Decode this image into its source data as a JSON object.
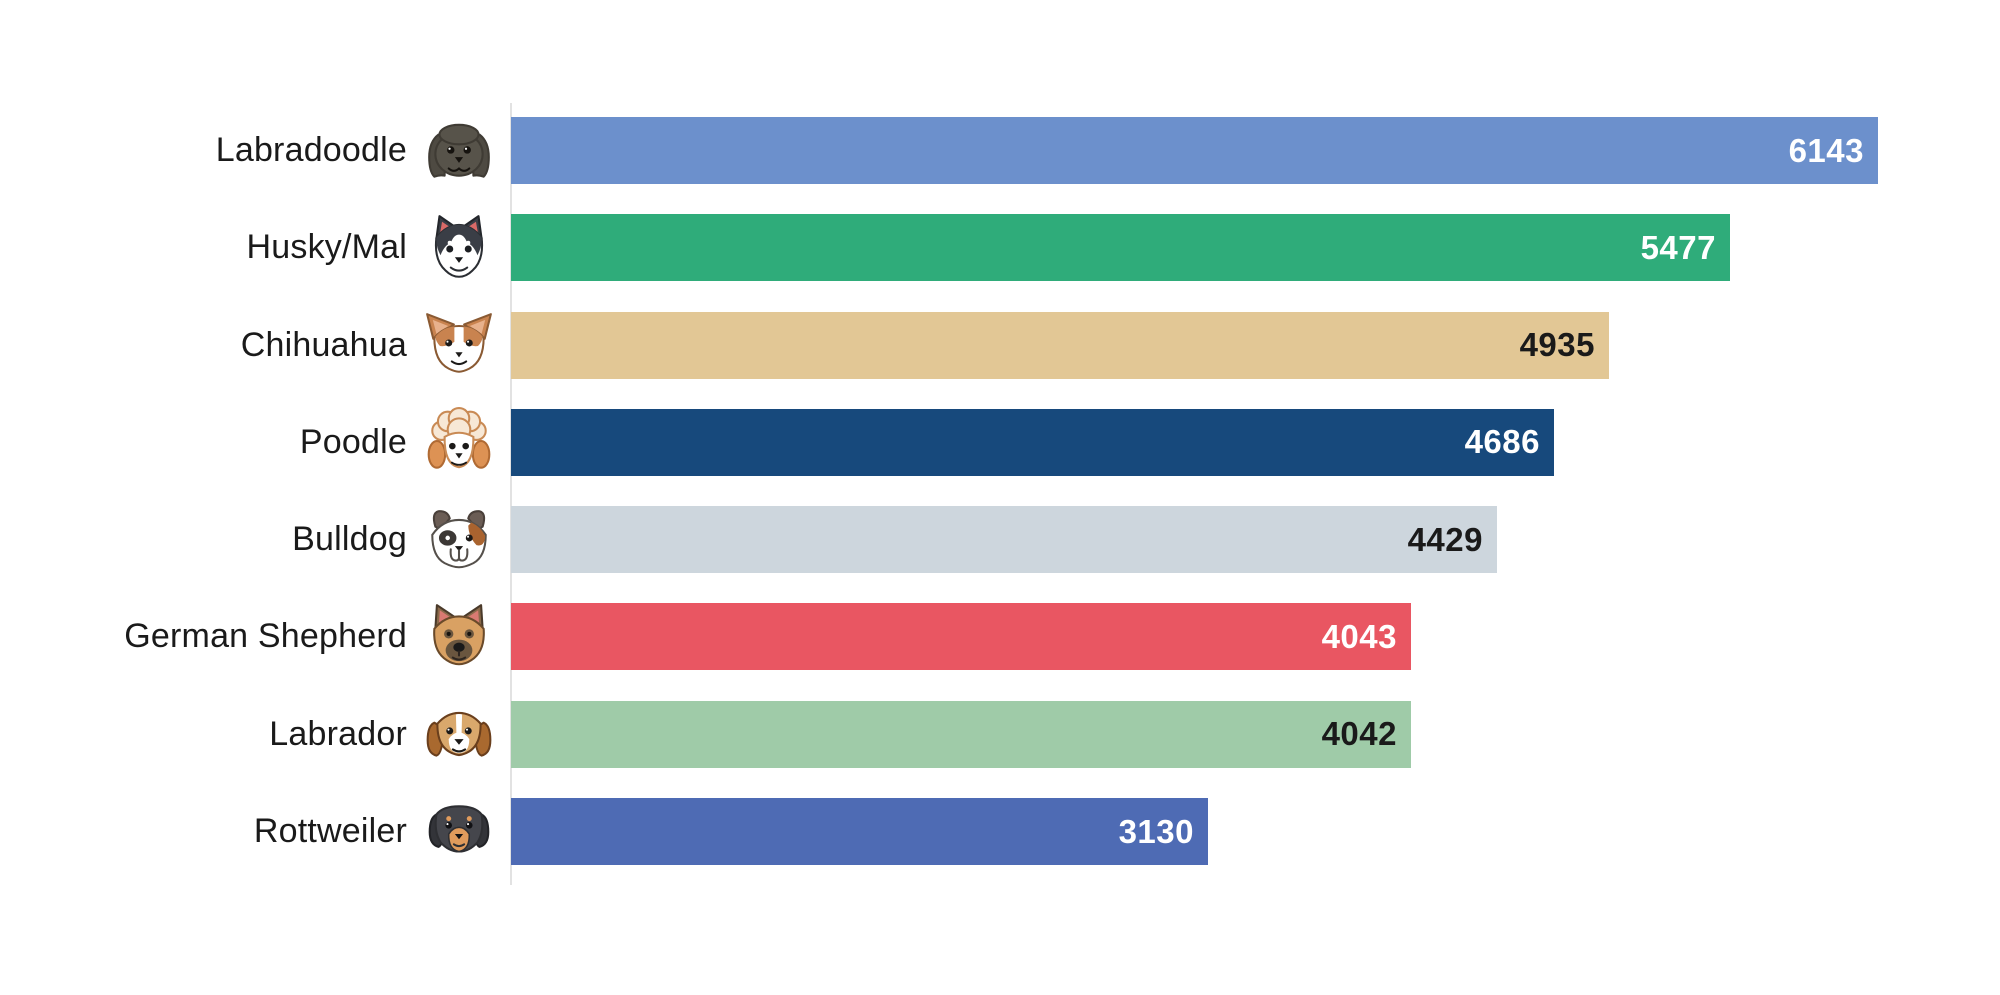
{
  "page": {
    "background": "#ffffff"
  },
  "chart_data": {
    "type": "bar",
    "orientation": "horizontal",
    "title": "",
    "xlabel": "",
    "ylabel": "",
    "grid": false,
    "legend": false,
    "value_labels_position": "inside-end",
    "xlim": [
      0,
      6690
    ],
    "axis_line_color": "#e2e2e2",
    "label_text_color": "#1a1a1a",
    "categories": [
      "Labradoodle",
      "Husky/Mal",
      "Chihuahua",
      "Poodle",
      "Bulldog",
      "German Shepherd",
      "Labrador",
      "Rottweiler"
    ],
    "values": [
      6143,
      5477,
      4935,
      4686,
      4429,
      4043,
      4042,
      3130
    ],
    "bar_colors": [
      "#6c90cc",
      "#2fac7a",
      "#e2c795",
      "#17497c",
      "#cdd6dd",
      "#e95662",
      "#9fcba8",
      "#4e6bb4"
    ],
    "value_label_colors": [
      "#ffffff",
      "#ffffff",
      "#1a1a1a",
      "#ffffff",
      "#1a1a1a",
      "#ffffff",
      "#1a1a1a",
      "#ffffff"
    ],
    "icons": [
      "labradoodle-icon",
      "husky-icon",
      "chihuahua-icon",
      "poodle-icon",
      "bulldog-icon",
      "german-shepherd-icon",
      "labrador-icon",
      "rottweiler-icon"
    ]
  }
}
